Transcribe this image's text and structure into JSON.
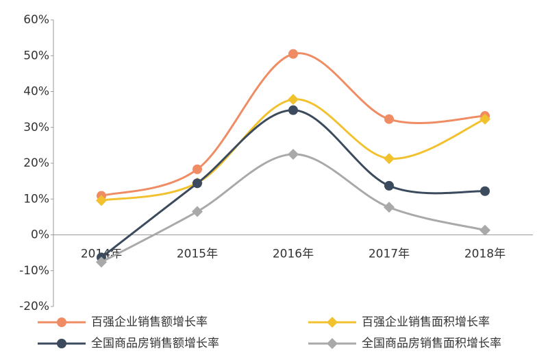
{
  "chart_data": {
    "type": "line",
    "categories": [
      "2014年",
      "2015年",
      "2016年",
      "2017年",
      "2018年"
    ],
    "series": [
      {
        "name": "百强企业销售额增长率",
        "color": "#ef8c63",
        "marker": "circle",
        "values": [
          10.9,
          18.3,
          50.5,
          32.3,
          33.2
        ]
      },
      {
        "name": "百强企业销售面积增长率",
        "color": "#f2c12e",
        "marker": "diamond",
        "values": [
          9.6,
          14.5,
          37.8,
          21.3,
          32.3
        ]
      },
      {
        "name": "全国商品房销售额增长率",
        "color": "#3b4a5c",
        "marker": "circle",
        "values": [
          -6.3,
          14.4,
          34.8,
          13.7,
          12.2
        ]
      },
      {
        "name": "全国商品房销售面积增长率",
        "color": "#a9a9a9",
        "marker": "diamond",
        "values": [
          -7.6,
          6.5,
          22.5,
          7.7,
          1.3
        ]
      }
    ],
    "ylim": [
      -20,
      60
    ],
    "yticks": [
      {
        "value": -20,
        "label": "-20%"
      },
      {
        "value": -10,
        "label": "-10%"
      },
      {
        "value": 0,
        "label": "0%"
      },
      {
        "value": 10,
        "label": "10%"
      },
      {
        "value": 20,
        "label": "20%"
      },
      {
        "value": 30,
        "label": "30%"
      },
      {
        "value": 40,
        "label": "40%"
      },
      {
        "value": 50,
        "label": "50%"
      },
      {
        "value": 60,
        "label": "60%"
      }
    ],
    "grid": false,
    "legend": "bottom"
  }
}
